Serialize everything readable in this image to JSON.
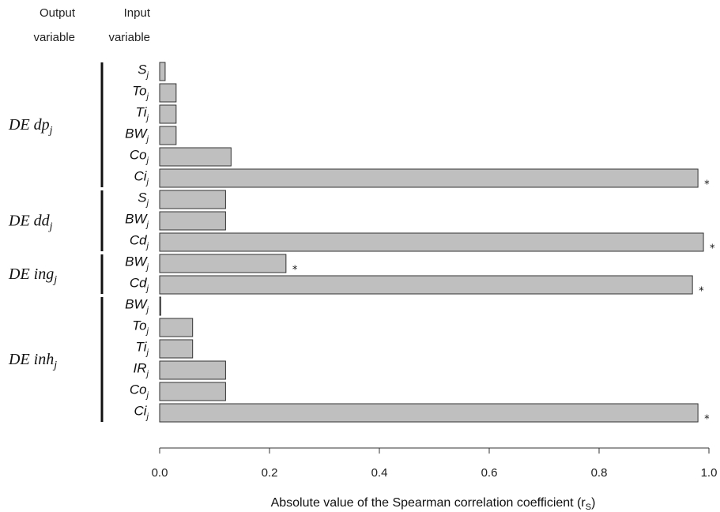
{
  "headers": {
    "output_line1": "Output",
    "output_line2": "variable",
    "input_line1": "Input",
    "input_line2": "variable"
  },
  "chart_data": {
    "type": "bar",
    "orientation": "horizontal",
    "xlabel": "Absolute value of the Spearman correlation coefficient (r",
    "xlabel_sub": "S",
    "xlabel_close": ")",
    "xlim": [
      0,
      1.0
    ],
    "xticks": [
      "0.0",
      "0.2",
      "0.4",
      "0.6",
      "0.8",
      "1.0"
    ],
    "significance_marker": "*",
    "groups": [
      {
        "output": "DE dp",
        "output_sub": "j",
        "bars": [
          {
            "input": "S",
            "sub": "j",
            "value": 0.01,
            "significant": false
          },
          {
            "input": "To",
            "sub": "j",
            "value": 0.03,
            "significant": false
          },
          {
            "input": "Ti",
            "sub": "j",
            "value": 0.03,
            "significant": false
          },
          {
            "input": "BW",
            "sub": "j",
            "value": 0.03,
            "significant": false
          },
          {
            "input": "Co",
            "sub": "j",
            "value": 0.13,
            "significant": false
          },
          {
            "input": "Ci",
            "sub": "j",
            "value": 0.98,
            "significant": true
          }
        ]
      },
      {
        "output": "DE dd",
        "output_sub": "j",
        "bars": [
          {
            "input": "S",
            "sub": "j",
            "value": 0.12,
            "significant": false
          },
          {
            "input": "BW",
            "sub": "j",
            "value": 0.12,
            "significant": false
          },
          {
            "input": "Cd",
            "sub": "j",
            "value": 0.99,
            "significant": true
          }
        ]
      },
      {
        "output": "DE ing",
        "output_sub": "j",
        "bars": [
          {
            "input": "BW",
            "sub": "j",
            "value": 0.23,
            "significant": true
          },
          {
            "input": "Cd",
            "sub": "j",
            "value": 0.97,
            "significant": true
          }
        ]
      },
      {
        "output": "DE inh",
        "output_sub": "j",
        "bars": [
          {
            "input": "BW",
            "sub": "j",
            "value": 0.002,
            "significant": false
          },
          {
            "input": "To",
            "sub": "j",
            "value": 0.06,
            "significant": false
          },
          {
            "input": "Ti",
            "sub": "j",
            "value": 0.06,
            "significant": false
          },
          {
            "input": "IR",
            "sub": "j",
            "value": 0.12,
            "significant": false
          },
          {
            "input": "Co",
            "sub": "j",
            "value": 0.12,
            "significant": false
          },
          {
            "input": "Ci",
            "sub": "j",
            "value": 0.98,
            "significant": true
          }
        ]
      }
    ]
  }
}
